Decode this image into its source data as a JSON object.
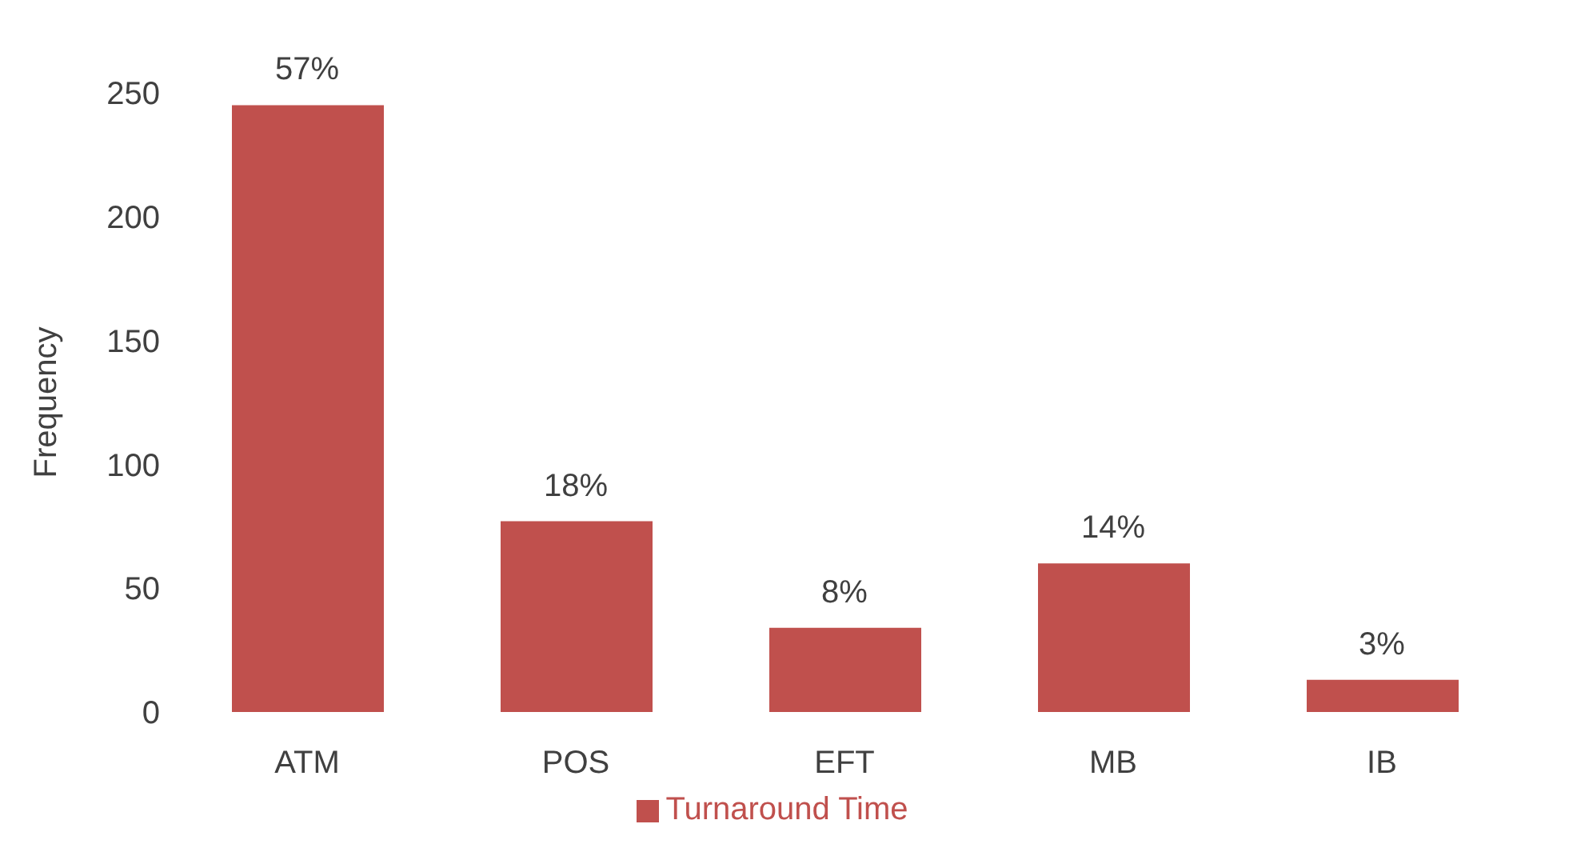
{
  "chart_data": {
    "type": "bar",
    "ylabel": "Frequency",
    "categories": [
      "ATM",
      "POS",
      "EFT",
      "MB",
      "IB"
    ],
    "series": [
      {
        "name": "Turnaround Time",
        "color": "#c0504d",
        "values": [
          245,
          77,
          34,
          60,
          13
        ]
      }
    ],
    "annotations": [
      {
        "text": "57%",
        "x": "ATM",
        "y": 245
      },
      {
        "text": "18%",
        "x": "POS",
        "y": 77
      },
      {
        "text": "8%",
        "x": "EFT",
        "y": 34
      },
      {
        "text": "14%",
        "x": "MB",
        "y": 60
      },
      {
        "text": "3%",
        "x": "IB",
        "y": 13
      }
    ],
    "ylim": [
      0,
      250
    ],
    "yticks": [
      0,
      50,
      100,
      150,
      200,
      250
    ],
    "grid": false,
    "legend": "bottom"
  }
}
